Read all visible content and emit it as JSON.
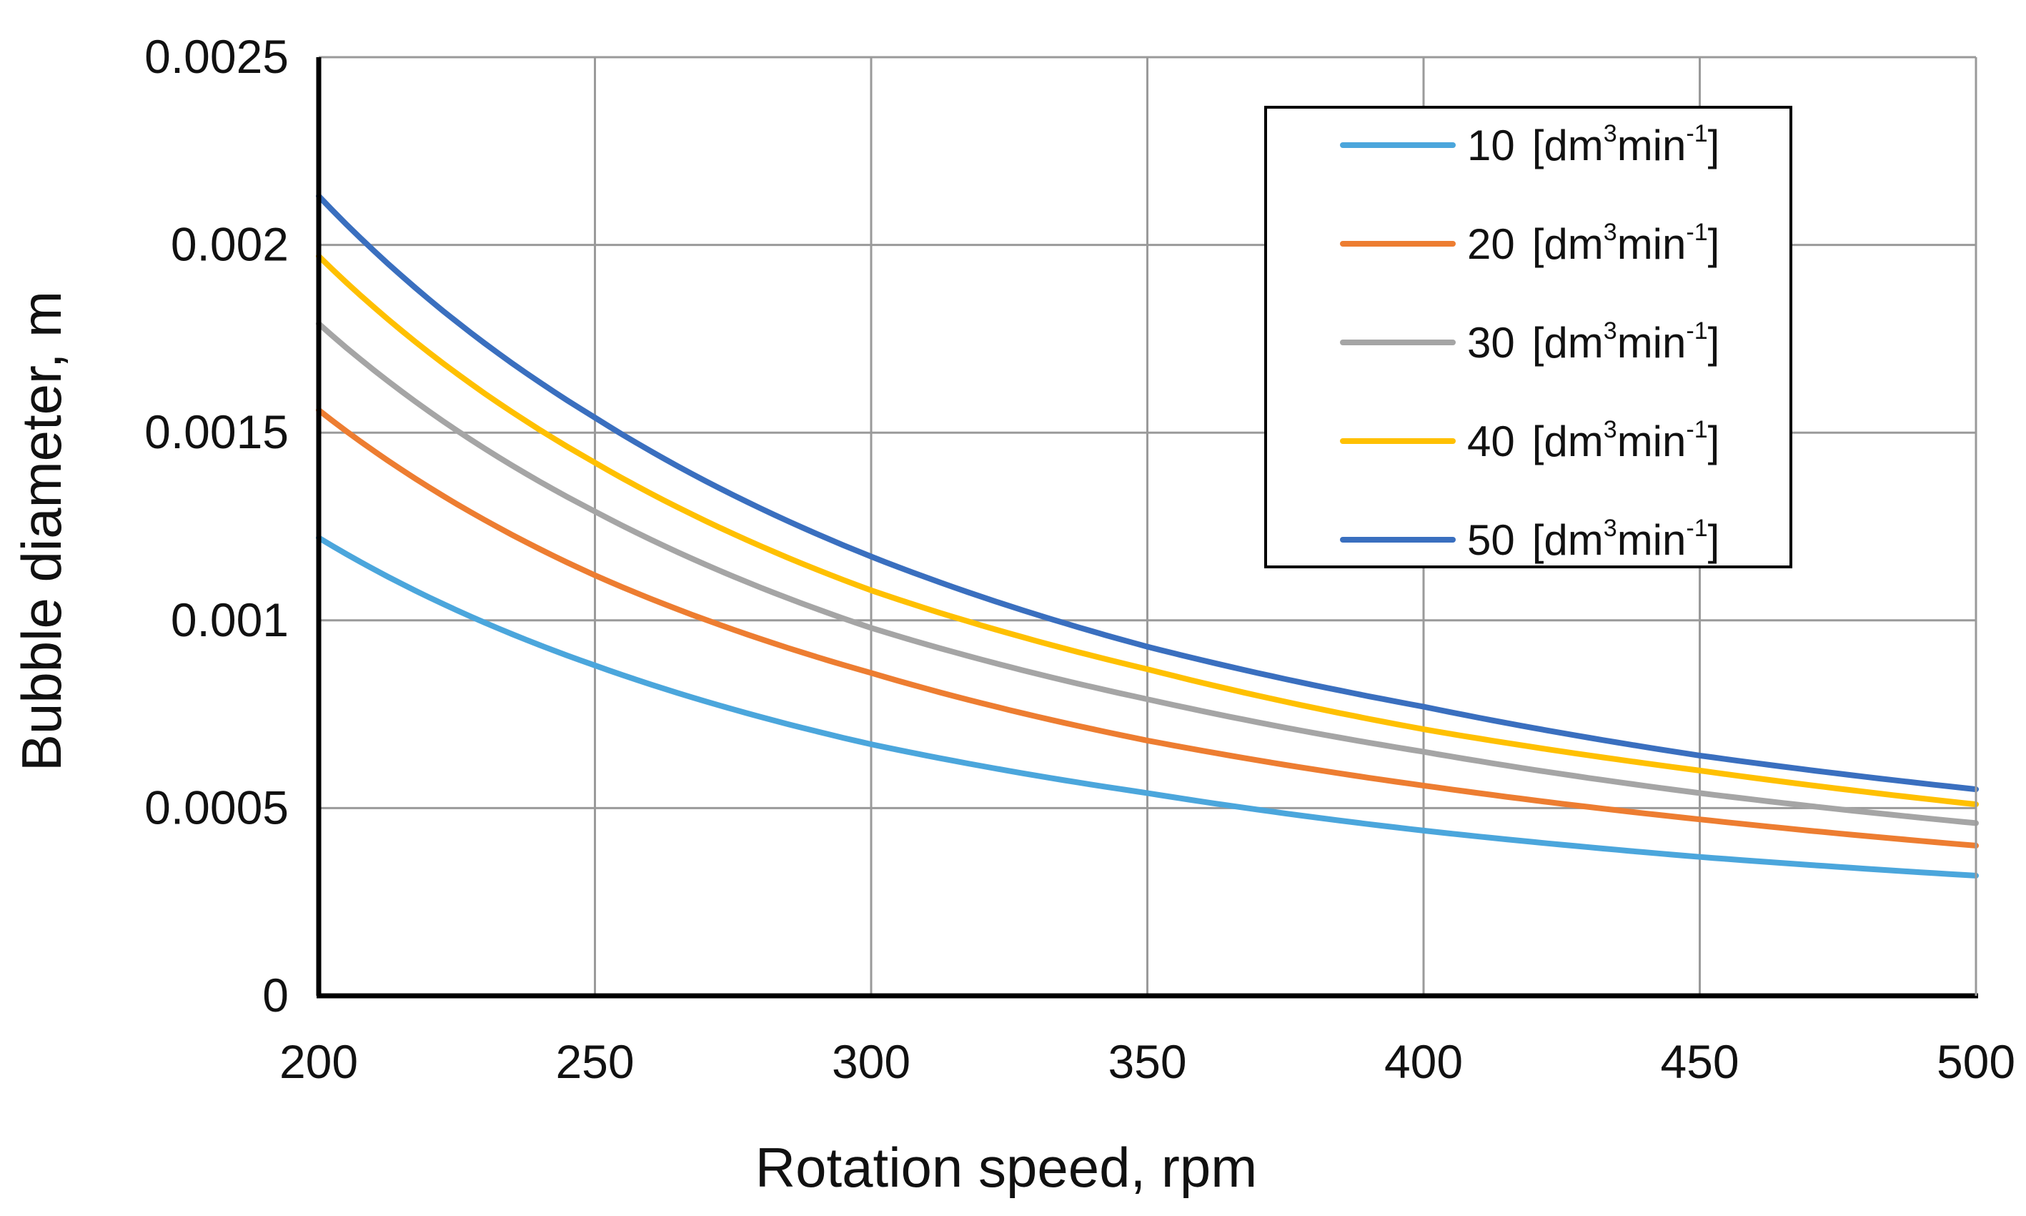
{
  "chart_data": {
    "type": "line",
    "title": "",
    "xlabel": "Rotation speed, rpm",
    "ylabel": "Bubble diameter, m",
    "xlim": [
      200,
      500
    ],
    "ylim": [
      0,
      0.0025
    ],
    "grid": true,
    "legend_position": "top-right",
    "x_ticks": [
      {
        "value": 200,
        "label": "200"
      },
      {
        "value": 250,
        "label": "250"
      },
      {
        "value": 300,
        "label": "300"
      },
      {
        "value": 350,
        "label": "350"
      },
      {
        "value": 400,
        "label": "400"
      },
      {
        "value": 450,
        "label": "450"
      },
      {
        "value": 500,
        "label": "500"
      }
    ],
    "y_ticks": [
      {
        "value": 0,
        "label": "0"
      },
      {
        "value": 0.0005,
        "label": "0.0005"
      },
      {
        "value": 0.001,
        "label": "0.001"
      },
      {
        "value": 0.0015,
        "label": "0.0015"
      },
      {
        "value": 0.002,
        "label": "0.002"
      },
      {
        "value": 0.0025,
        "label": "0.0025"
      }
    ],
    "x": [
      200,
      250,
      300,
      350,
      400,
      450,
      500
    ],
    "series": [
      {
        "name": "10",
        "unit_base": "[dm",
        "unit_sup1": "3",
        "unit_mid": "min",
        "unit_sup2": "-1",
        "unit_end": "]",
        "color": "#4BA6DC",
        "values": [
          0.00122,
          0.00088,
          0.00067,
          0.00054,
          0.00044,
          0.00037,
          0.00032
        ]
      },
      {
        "name": "20",
        "unit_base": "[dm",
        "unit_sup1": "3",
        "unit_mid": "min",
        "unit_sup2": "-1",
        "unit_end": "]",
        "color": "#ED7D31",
        "values": [
          0.00156,
          0.00112,
          0.00086,
          0.00068,
          0.00056,
          0.00047,
          0.0004
        ]
      },
      {
        "name": "30",
        "unit_base": "[dm",
        "unit_sup1": "3",
        "unit_mid": "min",
        "unit_sup2": "-1",
        "unit_end": "]",
        "color": "#A5A5A5",
        "values": [
          0.00179,
          0.00129,
          0.00098,
          0.00079,
          0.00065,
          0.00054,
          0.00046
        ]
      },
      {
        "name": "40",
        "unit_base": "[dm",
        "unit_sup1": "3",
        "unit_mid": "min",
        "unit_sup2": "-1",
        "unit_end": "]",
        "color": "#FFC000",
        "values": [
          0.00197,
          0.00142,
          0.00108,
          0.00087,
          0.00071,
          0.0006,
          0.00051
        ]
      },
      {
        "name": "50",
        "unit_base": "[dm",
        "unit_sup1": "3",
        "unit_mid": "min",
        "unit_sup2": "-1",
        "unit_end": "]",
        "color": "#3A6FBF",
        "values": [
          0.00213,
          0.00154,
          0.00117,
          0.00093,
          0.00077,
          0.00064,
          0.00055
        ]
      }
    ]
  }
}
